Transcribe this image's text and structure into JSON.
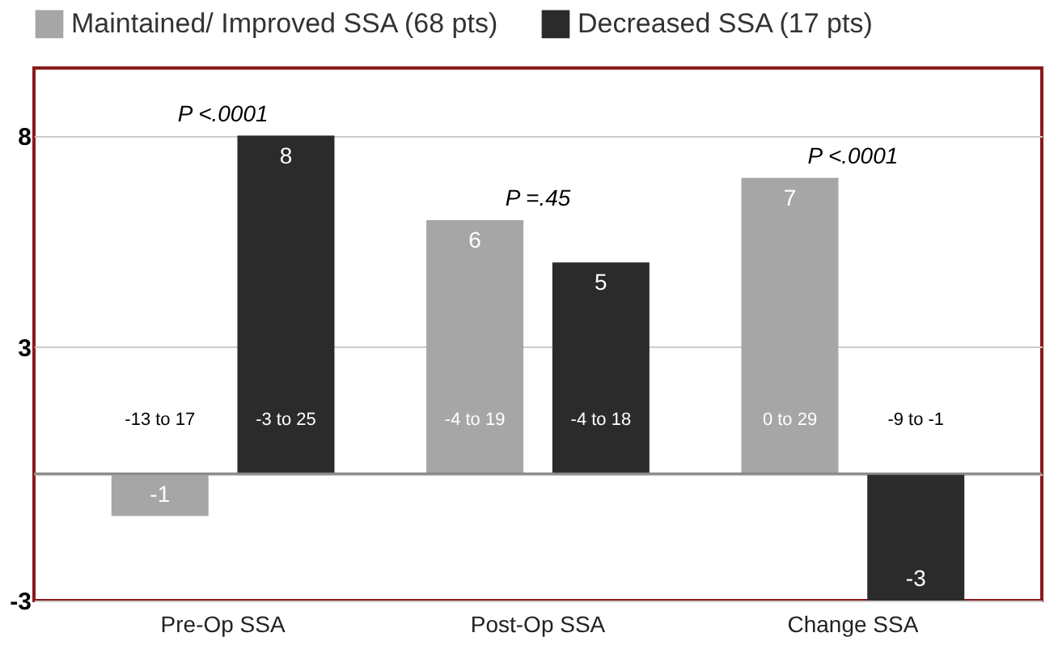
{
  "chart_data": {
    "type": "bar",
    "categories": [
      "Pre-Op SSA",
      "Post-Op SSA",
      "Change SSA"
    ],
    "series": [
      {
        "name": "Maintained/ Improved SSA (68 pts)",
        "color": "#a6a6a6",
        "values": [
          -1,
          6,
          7
        ]
      },
      {
        "name": "Decreased SSA (17 pts)",
        "color": "#2b2b2b",
        "values": [
          8,
          5,
          -3
        ]
      }
    ],
    "ylim": [
      -3,
      9.6
    ],
    "yticks": [
      -3,
      {
        "value": 0,
        "label": null
      },
      3,
      8
    ],
    "grid": "y",
    "legend": "top",
    "data_labels": true,
    "annotations": [
      "-13 to 17",
      "-3 to 25",
      "-4 to 19",
      "-4 to 18",
      "0 to 29",
      "-9 to -1",
      "P <.0001",
      "P =.45",
      "P <.0001"
    ]
  }
}
